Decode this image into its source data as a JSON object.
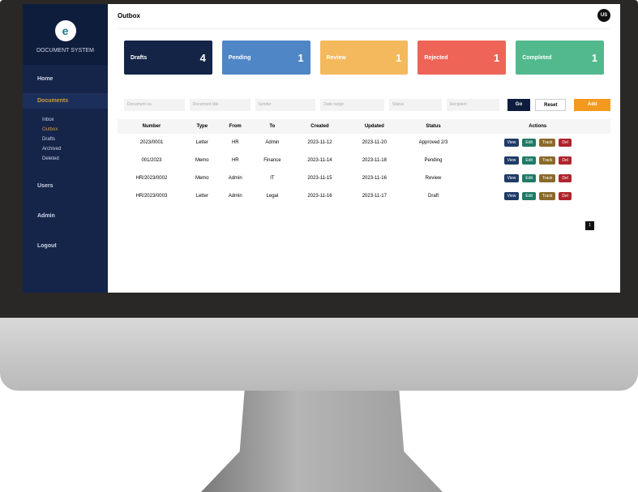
{
  "app": {
    "name": "DOCUMENT SYSTEM",
    "logo_letter": "e"
  },
  "sidebar": {
    "items": [
      {
        "label": "Home"
      },
      {
        "label": "Documents",
        "active": true,
        "sub": [
          {
            "label": "Inbox"
          },
          {
            "label": "Outbox",
            "active": true
          },
          {
            "label": "Drafts"
          },
          {
            "label": "Archived"
          },
          {
            "label": "Deleted"
          }
        ]
      },
      {
        "label": "Users"
      },
      {
        "label": "Admin"
      },
      {
        "label": "Logout"
      }
    ]
  },
  "header": {
    "title": "Outbox",
    "avatar": "US"
  },
  "cards": [
    {
      "label": "Drafts",
      "value": "4",
      "color": "#142447"
    },
    {
      "label": "Pending",
      "value": "1",
      "color": "#4f86c6"
    },
    {
      "label": "Review",
      "value": "1",
      "color": "#f4b95c"
    },
    {
      "label": "Rejected",
      "value": "1",
      "color": "#ee6457"
    },
    {
      "label": "Completed",
      "value": "1",
      "color": "#52b98d"
    }
  ],
  "filters": {
    "inputs": [
      "Document no.",
      "Document title",
      "Sender",
      "Date range",
      "Status",
      "Recipient"
    ],
    "search": "Go",
    "reset": "Reset",
    "add": "Add new"
  },
  "table": {
    "headers": [
      "Number",
      "Type",
      "From",
      "To",
      "Created",
      "Updated",
      "Status",
      "Actions"
    ],
    "rows": [
      [
        "2023/0001",
        "Letter",
        "HR",
        "Admin",
        "2023-11-12",
        "2023-11-20",
        "Approved 2/3"
      ],
      [
        "001/2023",
        "Memo",
        "HR",
        "Finance",
        "2023-11-14",
        "2023-11-18",
        "Pending"
      ],
      [
        "HR/2023/0002",
        "Memo",
        "Admin",
        "IT",
        "2023-11-15",
        "2023-11-16",
        "Review"
      ],
      [
        "HR/2023/0003",
        "Letter",
        "Admin",
        "Legal",
        "2023-11-16",
        "2023-11-17",
        "Draft"
      ]
    ],
    "actions": [
      {
        "label": "View",
        "color": "#1f3a66"
      },
      {
        "label": "Edit",
        "color": "#1f7a66"
      },
      {
        "label": "Track",
        "color": "#8a6a2a"
      },
      {
        "label": "Del",
        "color": "#b0242c"
      }
    ]
  },
  "pagination": {
    "current": "1"
  }
}
